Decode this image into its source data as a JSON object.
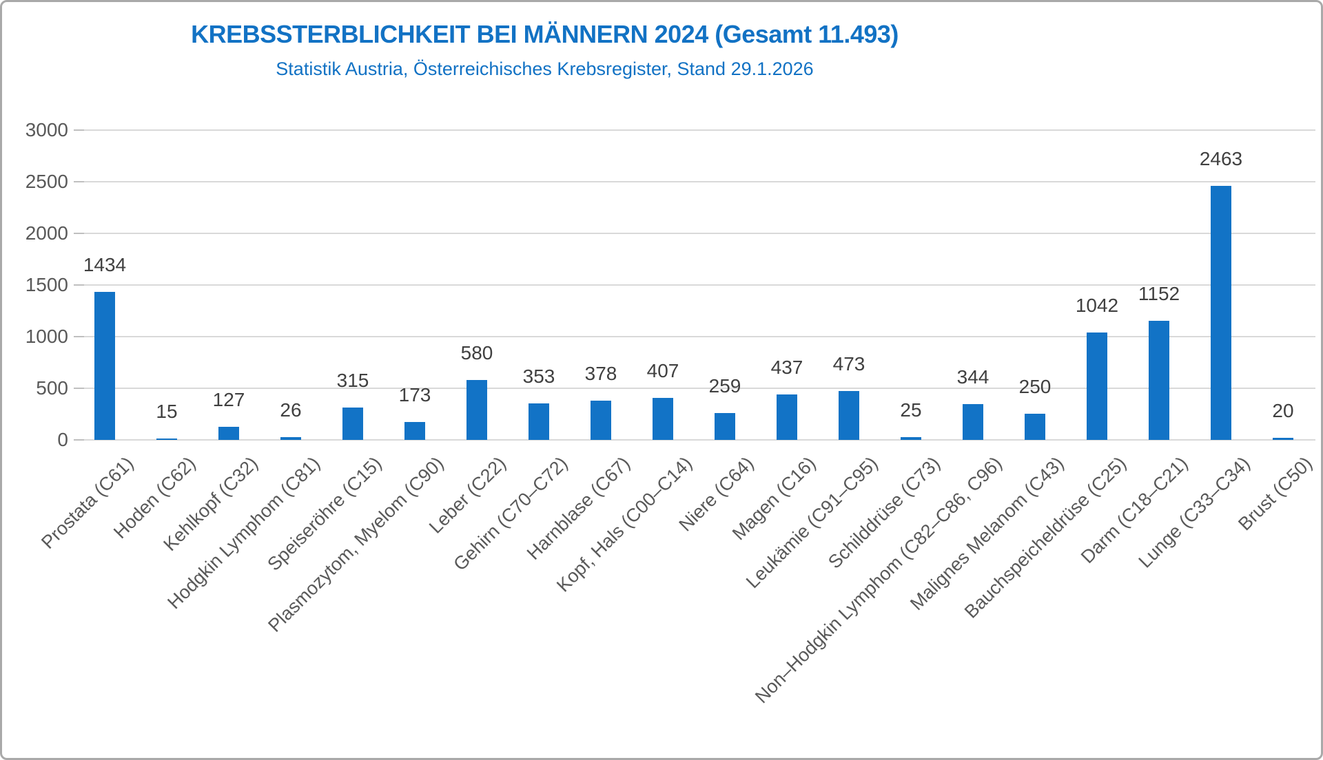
{
  "header": {
    "title": "KREBSSTERBLICHKEIT BEI MÄNNERN 2024 (Gesamt 11.493)",
    "subtitle": "Statistik Austria, Österreichisches Krebsregister, Stand 29.1.2026"
  },
  "chart_data": {
    "type": "bar",
    "title": "KREBSSTERBLICHKEIT BEI MÄNNERN 2024 (Gesamt 11.493)",
    "subtitle": "Statistik Austria, Österreichisches Krebsregister, Stand 29.1.2026",
    "categories": [
      "Prostata (C61)",
      "Hoden (C62)",
      "Kehlkopf (C32)",
      "Hodgkin Lymphom (C81)",
      "Speiseröhre (C15)",
      "Plasmozytom, Myelom (C90)",
      "Leber (C22)",
      "Gehirn (C70–C72)",
      "Harnblase (C67)",
      "Kopf, Hals (C00–C14)",
      "Niere (C64)",
      "Magen (C16)",
      "Leukämie (C91–C95)",
      "Schilddrüse (C73)",
      "Non–Hodgkin Lymphom (C82–C86, C96)",
      "Malignes Melanom (C43)",
      "Bauchspeicheldrüse (C25)",
      "Darm (C18–C21)",
      "Lunge (C33–C34)",
      "Brust (C50)"
    ],
    "values": [
      1434,
      15,
      127,
      26,
      315,
      173,
      580,
      353,
      378,
      407,
      259,
      437,
      473,
      25,
      344,
      250,
      1042,
      1152,
      2463,
      20
    ],
    "data_labels": true,
    "xlabel": "",
    "ylabel": "",
    "ylim": [
      0,
      3000
    ],
    "yticks": [
      0,
      500,
      1000,
      1500,
      2000,
      2500,
      3000
    ],
    "grid": true,
    "legend_position": "none",
    "colors": {
      "bar": "#1273c6",
      "title": "#1272c4",
      "value_label": "#404040",
      "axis_label": "#595959",
      "gridline": "#d9d9d9",
      "frame_border": "#a9a9a9"
    }
  }
}
